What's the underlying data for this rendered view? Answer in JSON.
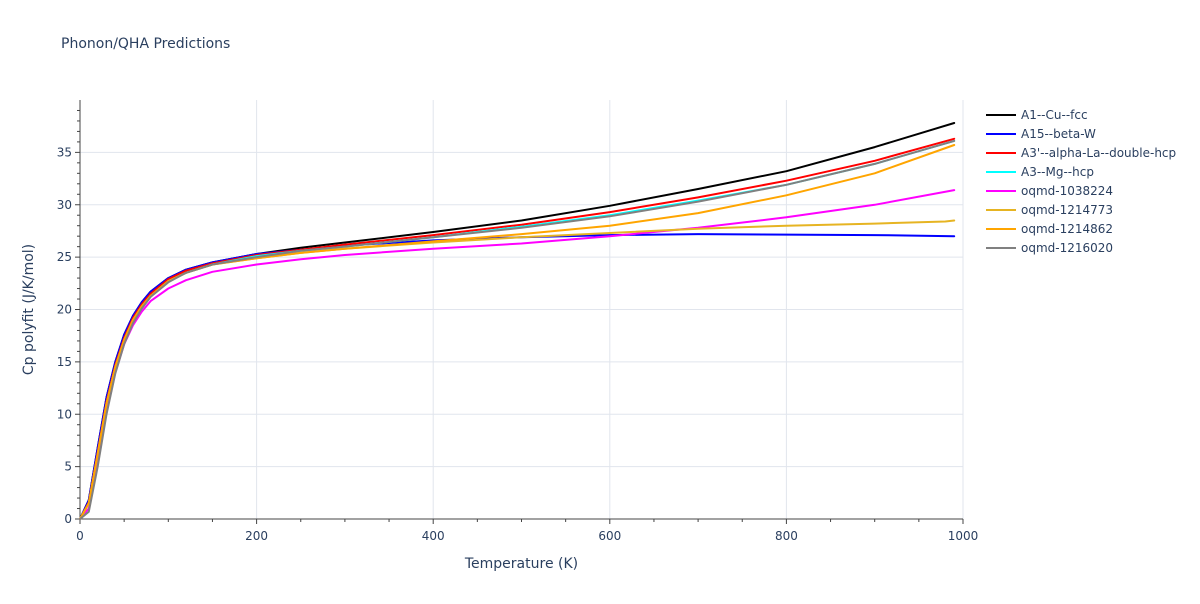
{
  "chart_data": {
    "type": "line",
    "title": "Phonon/QHA Predictions",
    "xlabel": "Temperature (K)",
    "ylabel": "Cp polyfit (J/K/mol)",
    "xlim": [
      0,
      1000
    ],
    "ylim": [
      0,
      40
    ],
    "xticks": [
      0,
      200,
      400,
      600,
      800,
      1000
    ],
    "yticks": [
      0,
      5,
      10,
      15,
      20,
      25,
      30,
      35
    ],
    "grid": true,
    "legend_position": "right",
    "series": [
      {
        "name": "A1--Cu--fcc",
        "color": "#000000",
        "x": [
          0,
          10,
          20,
          30,
          40,
          50,
          60,
          70,
          80,
          100,
          120,
          150,
          200,
          250,
          300,
          400,
          500,
          600,
          700,
          800,
          900,
          990
        ],
        "y": [
          0,
          1.8,
          6.8,
          11.6,
          15.0,
          17.6,
          19.4,
          20.7,
          21.7,
          23.0,
          23.8,
          24.5,
          25.3,
          25.9,
          26.4,
          27.4,
          28.5,
          29.9,
          31.5,
          33.2,
          35.5,
          37.8
        ]
      },
      {
        "name": "A15--beta-W",
        "color": "#0000ff",
        "x": [
          0,
          10,
          20,
          30,
          40,
          50,
          60,
          70,
          80,
          100,
          120,
          150,
          200,
          250,
          300,
          400,
          500,
          600,
          700,
          800,
          900,
          990
        ],
        "y": [
          0,
          1.8,
          6.8,
          11.6,
          15.0,
          17.6,
          19.4,
          20.7,
          21.7,
          23.0,
          23.8,
          24.5,
          25.3,
          25.7,
          26.1,
          26.6,
          26.9,
          27.1,
          27.2,
          27.15,
          27.1,
          27.0
        ]
      },
      {
        "name": "A3'--alpha-La--double-hcp",
        "color": "#ff0000",
        "x": [
          0,
          10,
          20,
          30,
          40,
          50,
          60,
          70,
          80,
          100,
          120,
          150,
          200,
          250,
          300,
          400,
          500,
          600,
          700,
          800,
          900,
          990
        ],
        "y": [
          0,
          1.6,
          6.4,
          11.2,
          14.7,
          17.3,
          19.2,
          20.5,
          21.5,
          22.9,
          23.7,
          24.4,
          25.2,
          25.7,
          26.2,
          27.1,
          28.1,
          29.3,
          30.7,
          32.3,
          34.2,
          36.3
        ]
      },
      {
        "name": "A3--Mg--hcp",
        "color": "#00ffff",
        "x": [
          0,
          10,
          20,
          30,
          40,
          50,
          60,
          70,
          80,
          100,
          120,
          150,
          200,
          250,
          300,
          400,
          500,
          600,
          700,
          800,
          900,
          990
        ],
        "y": [
          0,
          1.5,
          6.2,
          11.0,
          14.5,
          17.1,
          19.0,
          20.3,
          21.3,
          22.7,
          23.5,
          24.3,
          25.1,
          25.6,
          26.0,
          26.9,
          27.9,
          29.0,
          30.4,
          31.9,
          33.9,
          36.1
        ]
      },
      {
        "name": "oqmd-1038224",
        "color": "#ff00ff",
        "x": [
          0,
          10,
          20,
          30,
          40,
          50,
          60,
          70,
          80,
          100,
          120,
          150,
          200,
          250,
          300,
          400,
          500,
          600,
          700,
          800,
          900,
          990
        ],
        "y": [
          0,
          1.0,
          5.3,
          10.2,
          14.0,
          16.7,
          18.5,
          19.8,
          20.8,
          22.0,
          22.8,
          23.6,
          24.3,
          24.8,
          25.2,
          25.8,
          26.3,
          27.0,
          27.8,
          28.8,
          30.0,
          31.4
        ]
      },
      {
        "name": "oqmd-1214773",
        "color": "#e6b422",
        "x": [
          0,
          10,
          20,
          30,
          40,
          50,
          60,
          70,
          80,
          100,
          120,
          150,
          200,
          250,
          300,
          400,
          500,
          600,
          700,
          800,
          900,
          980,
          990
        ],
        "y": [
          0,
          1.5,
          6.2,
          11.0,
          14.5,
          17.1,
          19.0,
          20.3,
          21.3,
          22.7,
          23.5,
          24.3,
          24.9,
          25.4,
          25.8,
          26.4,
          26.9,
          27.3,
          27.7,
          28.0,
          28.2,
          28.4,
          28.5
        ]
      },
      {
        "name": "oqmd-1214862",
        "color": "#ffa500",
        "x": [
          0,
          10,
          20,
          30,
          40,
          50,
          60,
          70,
          80,
          100,
          120,
          150,
          200,
          250,
          300,
          400,
          500,
          600,
          700,
          800,
          900,
          990
        ],
        "y": [
          0,
          1.5,
          6.2,
          11.0,
          14.5,
          17.1,
          19.0,
          20.3,
          21.3,
          22.7,
          23.5,
          24.3,
          24.9,
          25.4,
          25.8,
          26.5,
          27.2,
          28.0,
          29.2,
          30.9,
          33.0,
          35.7
        ]
      },
      {
        "name": "oqmd-1216020",
        "color": "#808080",
        "x": [
          0,
          10,
          20,
          30,
          40,
          50,
          60,
          70,
          80,
          100,
          120,
          150,
          200,
          250,
          300,
          400,
          500,
          600,
          700,
          800,
          900,
          990
        ],
        "y": [
          0,
          0.7,
          5.0,
          10.0,
          13.9,
          16.7,
          18.7,
          20.1,
          21.2,
          22.6,
          23.5,
          24.3,
          25.0,
          25.6,
          26.0,
          26.9,
          27.8,
          28.9,
          30.3,
          31.9,
          33.9,
          36.1
        ]
      }
    ]
  }
}
